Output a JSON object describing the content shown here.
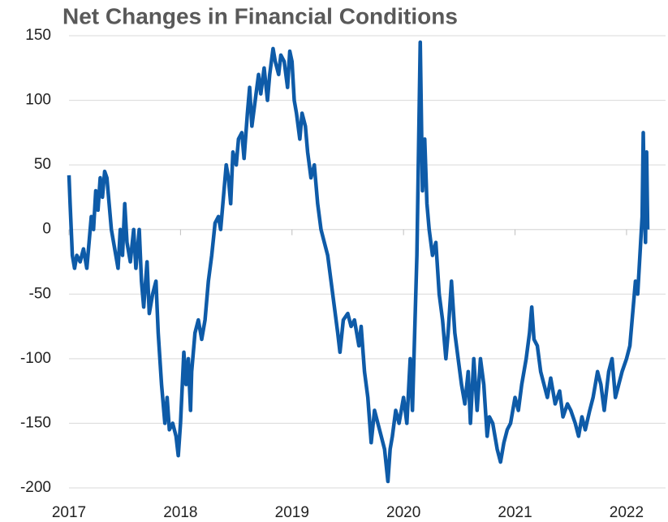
{
  "chart_data": {
    "type": "line",
    "title": "Net Changes in Financial Conditions",
    "x": [
      2017.0,
      2017.01,
      2017.02,
      2017.03,
      2017.05,
      2017.07,
      2017.1,
      2017.13,
      2017.16,
      2017.18,
      2017.2,
      2017.22,
      2017.24,
      2017.26,
      2017.28,
      2017.3,
      2017.32,
      2017.34,
      2017.36,
      2017.38,
      2017.4,
      2017.42,
      2017.44,
      2017.46,
      2017.48,
      2017.5,
      2017.52,
      2017.55,
      2017.58,
      2017.6,
      2017.63,
      2017.65,
      2017.67,
      2017.7,
      2017.72,
      2017.75,
      2017.78,
      2017.8,
      2017.83,
      2017.86,
      2017.88,
      2017.9,
      2017.93,
      2017.96,
      2017.98,
      2018.0,
      2018.03,
      2018.05,
      2018.07,
      2018.09,
      2018.1,
      2018.13,
      2018.16,
      2018.19,
      2018.22,
      2018.25,
      2018.28,
      2018.31,
      2018.34,
      2018.36,
      2018.39,
      2018.41,
      2018.43,
      2018.45,
      2018.47,
      2018.5,
      2018.52,
      2018.55,
      2018.57,
      2018.6,
      2018.62,
      2018.64,
      2018.67,
      2018.7,
      2018.72,
      2018.75,
      2018.78,
      2018.8,
      2018.83,
      2018.85,
      2018.88,
      2018.9,
      2018.93,
      2018.96,
      2018.98,
      2019.0,
      2019.02,
      2019.04,
      2019.07,
      2019.09,
      2019.12,
      2019.14,
      2019.17,
      2019.2,
      2019.23,
      2019.26,
      2019.29,
      2019.32,
      2019.35,
      2019.38,
      2019.41,
      2019.43,
      2019.46,
      2019.5,
      2019.53,
      2019.56,
      2019.6,
      2019.62,
      2019.65,
      2019.68,
      2019.71,
      2019.74,
      2019.77,
      2019.8,
      2019.83,
      2019.86,
      2019.88,
      2019.9,
      2019.93,
      2019.96,
      2020.0,
      2020.03,
      2020.06,
      2020.08,
      2020.1,
      2020.12,
      2020.14,
      2020.15,
      2020.17,
      2020.19,
      2020.21,
      2020.23,
      2020.26,
      2020.29,
      2020.32,
      2020.35,
      2020.38,
      2020.4,
      2020.43,
      2020.46,
      2020.49,
      2020.52,
      2020.55,
      2020.58,
      2020.6,
      2020.63,
      2020.66,
      2020.69,
      2020.72,
      2020.75,
      2020.77,
      2020.8,
      2020.84,
      2020.87,
      2020.9,
      2020.93,
      2020.96,
      2021.0,
      2021.03,
      2021.06,
      2021.1,
      2021.13,
      2021.15,
      2021.17,
      2021.2,
      2021.23,
      2021.26,
      2021.29,
      2021.32,
      2021.36,
      2021.4,
      2021.43,
      2021.47,
      2021.5,
      2021.54,
      2021.57,
      2021.6,
      2021.63,
      2021.67,
      2021.7,
      2021.74,
      2021.77,
      2021.8,
      2021.84,
      2021.87,
      2021.9,
      2021.93,
      2021.96,
      2022.0,
      2022.03,
      2022.06,
      2022.08,
      2022.1,
      2022.12,
      2022.14,
      2022.15,
      2022.16,
      2022.17,
      2022.18,
      2022.19
    ],
    "series": [
      {
        "name": "Net Changes in Financial Conditions",
        "color": "#0e5ba8",
        "values": [
          42,
          20,
          0,
          -20,
          -30,
          -20,
          -25,
          -15,
          -30,
          -10,
          10,
          0,
          30,
          15,
          40,
          25,
          45,
          40,
          20,
          0,
          -10,
          -20,
          -30,
          0,
          -20,
          20,
          -10,
          -25,
          0,
          -30,
          0,
          -40,
          -60,
          -25,
          -65,
          -50,
          -40,
          -80,
          -120,
          -150,
          -130,
          -155,
          -150,
          -160,
          -175,
          -150,
          -95,
          -120,
          -100,
          -140,
          -110,
          -80,
          -70,
          -85,
          -70,
          -40,
          -20,
          5,
          10,
          0,
          30,
          50,
          40,
          20,
          60,
          50,
          70,
          75,
          55,
          90,
          110,
          80,
          100,
          120,
          105,
          125,
          100,
          120,
          140,
          130,
          120,
          135,
          130,
          110,
          138,
          130,
          100,
          90,
          70,
          90,
          80,
          60,
          40,
          50,
          20,
          0,
          -10,
          -20,
          -40,
          -60,
          -80,
          -95,
          -70,
          -65,
          -75,
          -70,
          -90,
          -75,
          -110,
          -130,
          -165,
          -140,
          -150,
          -160,
          -170,
          -195,
          -170,
          -160,
          -140,
          -150,
          -130,
          -150,
          -100,
          -140,
          -80,
          -20,
          90,
          145,
          30,
          70,
          20,
          0,
          -20,
          -10,
          -50,
          -70,
          -100,
          -80,
          -40,
          -80,
          -100,
          -120,
          -135,
          -110,
          -150,
          -100,
          -140,
          -100,
          -120,
          -160,
          -145,
          -150,
          -170,
          -180,
          -165,
          -155,
          -150,
          -130,
          -140,
          -120,
          -100,
          -80,
          -60,
          -85,
          -90,
          -110,
          -120,
          -130,
          -115,
          -135,
          -125,
          -145,
          -135,
          -140,
          -150,
          -160,
          -145,
          -155,
          -140,
          -130,
          -110,
          -120,
          -140,
          -110,
          -100,
          -130,
          -120,
          -110,
          -100,
          -90,
          -60,
          -40,
          -50,
          -20,
          10,
          75,
          20,
          -10,
          60,
          0
        ]
      }
    ],
    "xlim": [
      2017,
      2022.35
    ],
    "xticks": [
      2017,
      2018,
      2019,
      2020,
      2021,
      2022
    ],
    "ylim": [
      -200,
      150
    ],
    "yticks": [
      -200,
      -150,
      -100,
      -50,
      0,
      50,
      100,
      150
    ],
    "grid": true
  }
}
